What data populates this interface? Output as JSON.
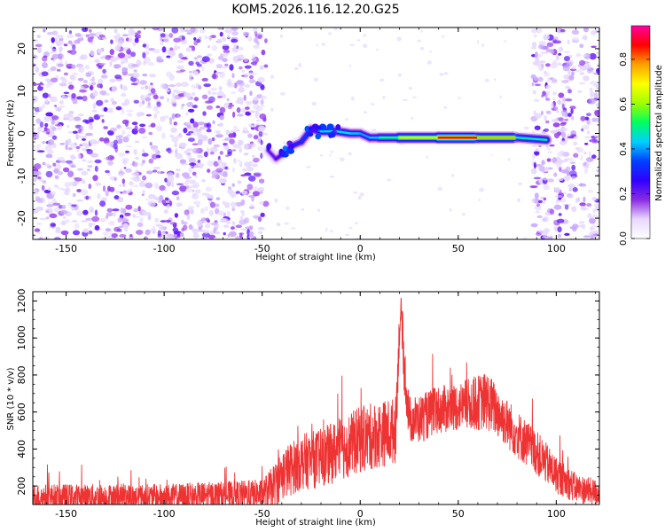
{
  "title": "KOM5.2026.116.12.20.G25",
  "chart_data": [
    {
      "type": "heatmap",
      "title": "KOM5.2026.116.12.20.G25",
      "xlabel": "Height of straight line (km)",
      "ylabel": "Frequency (Hz)",
      "xlim": [
        -167,
        122
      ],
      "ylim": [
        -25,
        25
      ],
      "xticks": [
        "-150",
        "-100",
        "-50",
        "0",
        "50",
        "100"
      ],
      "xtick_values": [
        -150,
        -100,
        -50,
        0,
        50,
        100
      ],
      "yticks": [
        "-20",
        "-10",
        "0",
        "10",
        "20"
      ],
      "ytick_values": [
        -20,
        -10,
        0,
        10,
        20
      ],
      "colorbar": {
        "label": "Normalized spectral amplitude",
        "range": [
          0,
          0.95
        ],
        "ticks": [
          "0.0",
          "0.2",
          "0.4",
          "0.6",
          "0.8"
        ],
        "tick_values": [
          0.0,
          0.2,
          0.4,
          0.6,
          0.8
        ],
        "colormap": [
          "#ffffff",
          "#e8d8ff",
          "#8a2be2",
          "#3000ff",
          "#0040ff",
          "#00d0ff",
          "#00ff60",
          "#a0ff00",
          "#ffff00",
          "#ffa000",
          "#ff0000",
          "#ff00a0"
        ]
      },
      "noise_regions_km": [
        [
          -167,
          -48
        ],
        [
          88,
          122
        ]
      ],
      "signal_trace": [
        {
          "x": -47,
          "y": -4,
          "amp": 0.25
        },
        {
          "x": -43,
          "y": -6,
          "amp": 0.2
        },
        {
          "x": -40,
          "y": -5,
          "amp": 0.3
        },
        {
          "x": -35,
          "y": -3,
          "amp": 0.3
        },
        {
          "x": -30,
          "y": -2,
          "amp": 0.35
        },
        {
          "x": -25,
          "y": 1,
          "amp": 0.35
        },
        {
          "x": -20,
          "y": 0.5,
          "amp": 0.45
        },
        {
          "x": -12,
          "y": 0.5,
          "amp": 0.5
        },
        {
          "x": -5,
          "y": 0,
          "amp": 0.45
        },
        {
          "x": 0,
          "y": 0,
          "amp": 0.45
        },
        {
          "x": 5,
          "y": -1,
          "amp": 0.4
        },
        {
          "x": 10,
          "y": -1,
          "amp": 0.5
        },
        {
          "x": 20,
          "y": -1,
          "amp": 0.6
        },
        {
          "x": 40,
          "y": -1,
          "amp": 0.9
        },
        {
          "x": 60,
          "y": -1,
          "amp": 0.95
        },
        {
          "x": 80,
          "y": -1,
          "amp": 0.65
        },
        {
          "x": 95,
          "y": -1.5,
          "amp": 0.35
        }
      ]
    },
    {
      "type": "line",
      "xlabel": "Height of straight line (km)",
      "ylabel": "SNR (10 * v/v)",
      "xlim": [
        -167,
        122
      ],
      "ylim": [
        100,
        1250
      ],
      "xticks": [
        "-150",
        "-100",
        "-50",
        "0",
        "50",
        "100"
      ],
      "xtick_values": [
        -150,
        -100,
        -50,
        0,
        50,
        100
      ],
      "yticks": [
        "200",
        "400",
        "600",
        "800",
        "1000",
        "1200"
      ],
      "ytick_values": [
        200,
        400,
        600,
        800,
        1000,
        1200
      ],
      "series": [
        {
          "name": "SNR",
          "color": "#ee3333",
          "envelope_x": [
            -167,
            -100,
            -50,
            -45,
            -40,
            -30,
            -20,
            -10,
            0,
            10,
            18,
            20,
            21,
            22,
            25,
            30,
            40,
            50,
            60,
            65,
            70,
            80,
            90,
            100,
            110,
            122
          ],
          "envelope_mean": [
            140,
            140,
            155,
            190,
            260,
            330,
            350,
            400,
            450,
            480,
            500,
            1050,
            1150,
            900,
            560,
            560,
            610,
            630,
            650,
            660,
            600,
            480,
            380,
            260,
            190,
            160
          ],
          "envelope_spread": [
            70,
            70,
            80,
            110,
            140,
            150,
            160,
            170,
            180,
            180,
            180,
            120,
            80,
            150,
            130,
            130,
            130,
            130,
            150,
            160,
            140,
            130,
            120,
            100,
            80,
            70
          ]
        }
      ]
    }
  ]
}
